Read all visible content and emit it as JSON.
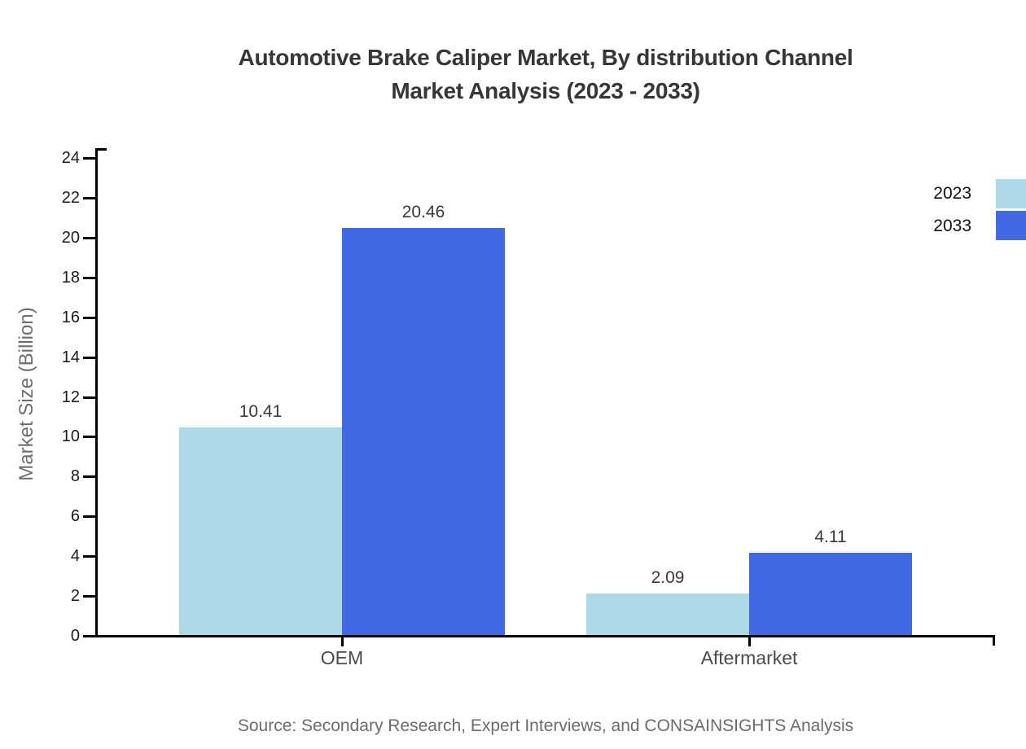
{
  "title": {
    "line1": "Automotive Brake Caliper Market, By distribution Channel",
    "line2": "Market Analysis (2023 - 2033)"
  },
  "source_note": "Source: Secondary Research, Expert Interviews, and CONSAINSIGHTS Analysis",
  "colors": {
    "series_2023": "#ADD8E6",
    "series_2033": "#4169E1",
    "axis": "#000000",
    "title_text": "#363636",
    "tick_text": "#1a1a1a",
    "category_text": "#4a4a4a",
    "value_text": "#3a3a3a",
    "muted_text": "#6e6e6e"
  },
  "legend": {
    "items": [
      {
        "label": "2023",
        "color": "#ADD8E6"
      },
      {
        "label": "2033",
        "color": "#4169E1"
      }
    ]
  },
  "chart_data": {
    "type": "bar",
    "title": "Automotive Brake Caliper Market, By distribution Channel Market Analysis (2023 - 2033)",
    "categories": [
      "OEM",
      "Aftermarket"
    ],
    "series": [
      {
        "name": "2023",
        "color": "#ADD8E6",
        "values": [
          10.41,
          2.09
        ]
      },
      {
        "name": "2033",
        "color": "#4169E1",
        "values": [
          20.46,
          4.11
        ]
      }
    ],
    "value_labels": {
      "2023": [
        "10.41",
        "2.09"
      ],
      "2033": [
        "20.46",
        "4.11"
      ]
    },
    "xlabel": "",
    "ylabel": "Market Size (Billion)",
    "ylim": [
      0,
      24
    ],
    "ytick_step": 2,
    "yticks": [
      0,
      2,
      4,
      6,
      8,
      10,
      12,
      14,
      16,
      18,
      20,
      22,
      24
    ],
    "grid": false,
    "legend_position": "top-right"
  }
}
